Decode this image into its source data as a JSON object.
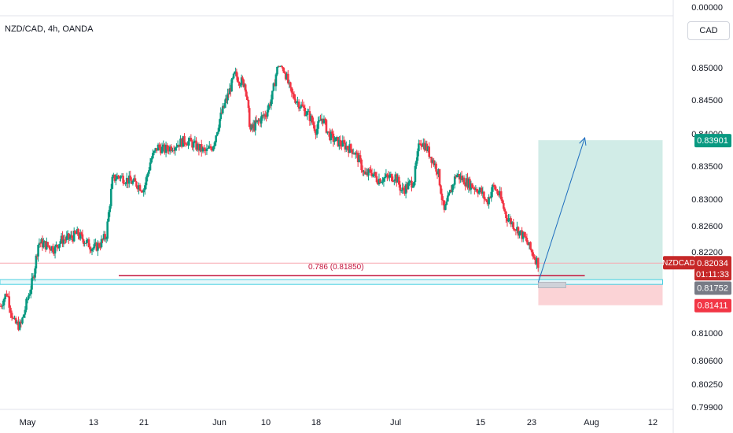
{
  "symbol_title": "NZD/CAD, 4h, OANDA",
  "currency_button": "CAD",
  "colors": {
    "up": "#089981",
    "down": "#f23645",
    "target_zone": "#d1ece7",
    "stop_zone": "#fbd3d6",
    "fib_line": "#c4143c",
    "support_zone_border": "#4dd0e1",
    "arrow": "#1f6fbf",
    "last_price_tag": "#c62828",
    "target_tag": "#089981",
    "stop_tag": "#f23645",
    "entry_tag": "#787b86"
  },
  "chart_data": {
    "type": "candlestick",
    "symbol": "NZD/CAD",
    "timeframe": "4h",
    "source": "OANDA",
    "ylim": [
      0.799,
      0.8575
    ],
    "y_ticks": [
      {
        "value": 0.85,
        "label": "0.85000"
      },
      {
        "value": 0.845,
        "label": "0.84500"
      },
      {
        "value": 0.84,
        "label": "0.84000"
      },
      {
        "value": 0.835,
        "label": "0.83500"
      },
      {
        "value": 0.83,
        "label": "0.83000"
      },
      {
        "value": 0.826,
        "label": "0.82600"
      },
      {
        "value": 0.822,
        "label": "0.82200"
      },
      {
        "value": 0.81,
        "label": "0.81000"
      },
      {
        "value": 0.806,
        "label": "0.80600"
      },
      {
        "value": 0.8025,
        "label": "0.80250"
      },
      {
        "value": 0.799,
        "label": "0.79900"
      }
    ],
    "y_top_label": "0.00000",
    "x_ticks": [
      {
        "date": "2024-05-01",
        "label": "May"
      },
      {
        "date": "2024-05-13",
        "label": "13"
      },
      {
        "date": "2024-05-21",
        "label": "21"
      },
      {
        "date": "2024-06-01",
        "label": "Jun"
      },
      {
        "date": "2024-06-10",
        "label": "10"
      },
      {
        "date": "2024-06-18",
        "label": "18"
      },
      {
        "date": "2024-07-01",
        "label": "Jul"
      },
      {
        "date": "2024-07-15",
        "label": "15"
      },
      {
        "date": "2024-07-23",
        "label": "23"
      },
      {
        "date": "2024-08-01",
        "label": "Aug"
      },
      {
        "date": "2024-08-12",
        "label": "12"
      }
    ],
    "price_path": [
      [
        "2024-04-27",
        0.814
      ],
      [
        "2024-04-28",
        0.816
      ],
      [
        "2024-04-29",
        0.8115
      ],
      [
        "2024-04-30",
        0.811
      ],
      [
        "2024-05-01",
        0.815
      ],
      [
        "2024-05-02",
        0.818
      ],
      [
        "2024-05-03",
        0.8235
      ],
      [
        "2024-05-06",
        0.8225
      ],
      [
        "2024-05-07",
        0.8238
      ],
      [
        "2024-05-09",
        0.8242
      ],
      [
        "2024-05-10",
        0.8248
      ],
      [
        "2024-05-13",
        0.8225
      ],
      [
        "2024-05-14",
        0.8232
      ],
      [
        "2024-05-15",
        0.8245
      ],
      [
        "2024-05-16",
        0.833
      ],
      [
        "2024-05-17",
        0.8335
      ],
      [
        "2024-05-20",
        0.8322
      ],
      [
        "2024-05-21",
        0.8315
      ],
      [
        "2024-05-22",
        0.836
      ],
      [
        "2024-05-23",
        0.838
      ],
      [
        "2024-05-24",
        0.8375
      ],
      [
        "2024-05-27",
        0.839
      ],
      [
        "2024-05-28",
        0.8385
      ],
      [
        "2024-05-29",
        0.8378
      ],
      [
        "2024-05-30",
        0.8372
      ],
      [
        "2024-05-31",
        0.838
      ],
      [
        "2024-06-01",
        0.842
      ],
      [
        "2024-06-03",
        0.8465
      ],
      [
        "2024-06-04",
        0.849
      ],
      [
        "2024-06-05",
        0.848
      ],
      [
        "2024-06-06",
        0.8475
      ],
      [
        "2024-06-07",
        0.8405
      ],
      [
        "2024-06-10",
        0.843
      ],
      [
        "2024-06-11",
        0.8455
      ],
      [
        "2024-06-12",
        0.8512
      ],
      [
        "2024-06-13",
        0.8495
      ],
      [
        "2024-06-14",
        0.846
      ],
      [
        "2024-06-17",
        0.8425
      ],
      [
        "2024-06-18",
        0.8405
      ],
      [
        "2024-06-19",
        0.8425
      ],
      [
        "2024-06-20",
        0.84
      ],
      [
        "2024-06-21",
        0.839
      ],
      [
        "2024-06-24",
        0.8375
      ],
      [
        "2024-06-25",
        0.836
      ],
      [
        "2024-06-26",
        0.8335
      ],
      [
        "2024-06-27",
        0.8342
      ],
      [
        "2024-06-28",
        0.833
      ],
      [
        "2024-07-01",
        0.8335
      ],
      [
        "2024-07-02",
        0.8312
      ],
      [
        "2024-07-03",
        0.832
      ],
      [
        "2024-07-04",
        0.8328
      ],
      [
        "2024-07-05",
        0.839
      ],
      [
        "2024-07-06",
        0.838
      ],
      [
        "2024-07-08",
        0.8342
      ],
      [
        "2024-07-09",
        0.828
      ],
      [
        "2024-07-10",
        0.831
      ],
      [
        "2024-07-11",
        0.8338
      ],
      [
        "2024-07-12",
        0.833
      ],
      [
        "2024-07-15",
        0.8312
      ],
      [
        "2024-07-16",
        0.8295
      ],
      [
        "2024-07-17",
        0.832
      ],
      [
        "2024-07-18",
        0.8305
      ],
      [
        "2024-07-19",
        0.8275
      ],
      [
        "2024-07-22",
        0.824
      ],
      [
        "2024-07-23",
        0.822
      ],
      [
        "2024-07-24",
        0.8203
      ]
    ],
    "horizontal_line": {
      "price": 0.82034,
      "color": "#f7a8b1"
    },
    "fib_level": {
      "label": "0.786 (0.81850)",
      "price": 0.8185,
      "from_date": "2024-05-17",
      "to_date": "2024-07-31"
    },
    "support_zone": {
      "price_top": 0.8179,
      "price_bottom": 0.8172
    },
    "position": {
      "type": "long",
      "start_date": "2024-07-24",
      "end_date": "2024-08-14",
      "entry": 0.81752,
      "target": 0.83901,
      "stop": 0.81411
    },
    "projection_arrow": {
      "from_date": "2024-07-24",
      "from_price": 0.81752,
      "to_date": "2024-07-31",
      "to_price": 0.8394
    },
    "price_tags": [
      {
        "id": "target",
        "label": "0.83901",
        "price": 0.83901,
        "color": "#089981"
      },
      {
        "id": "last",
        "symbol": "NZDCAD",
        "label": "0.82034",
        "countdown": "01:11:33",
        "price": 0.82034,
        "color": "#c62828"
      },
      {
        "id": "entry",
        "label": "0.81752",
        "price": 0.81752,
        "color": "#787b86"
      },
      {
        "id": "stop",
        "label": "0.81411",
        "price": 0.81411,
        "color": "#f23645"
      }
    ]
  }
}
